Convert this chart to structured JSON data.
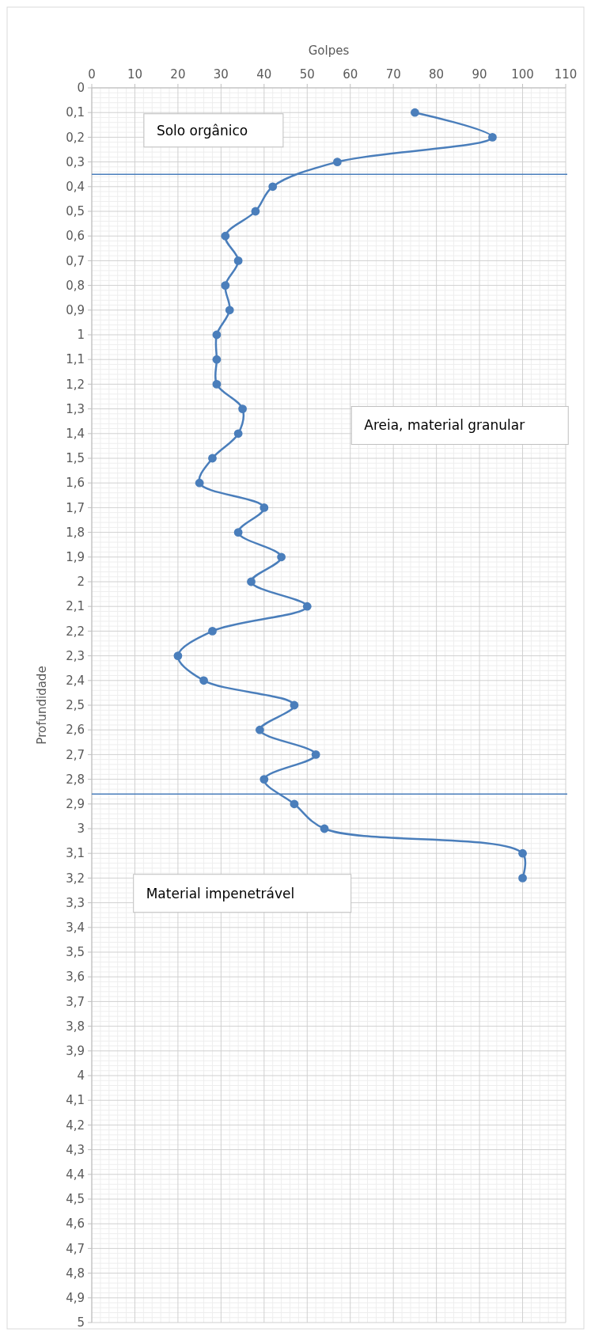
{
  "chart_data": {
    "type": "line",
    "xlabel": "Golpes",
    "ylabel": "Profundidade",
    "xlim": [
      0,
      110
    ],
    "xticks": [
      0,
      10,
      20,
      30,
      40,
      50,
      60,
      70,
      80,
      90,
      100,
      110
    ],
    "ylim": [
      5,
      0
    ],
    "yticks": [
      0,
      {
        "value": 0.1,
        "label": "0,1"
      },
      {
        "value": 0.2,
        "label": "0,2"
      },
      {
        "value": 0.3,
        "label": "0,3"
      },
      {
        "value": 0.4,
        "label": "0,4"
      },
      {
        "value": 0.5,
        "label": "0,5"
      },
      {
        "value": 0.6,
        "label": "0,6"
      },
      {
        "value": 0.7,
        "label": "0,7"
      },
      {
        "value": 0.8,
        "label": "0,8"
      },
      {
        "value": 0.9,
        "label": "0,9"
      },
      1,
      {
        "value": 1.1,
        "label": "1,1"
      },
      {
        "value": 1.2,
        "label": "1,2"
      },
      {
        "value": 1.3,
        "label": "1,3"
      },
      {
        "value": 1.4,
        "label": "1,4"
      },
      {
        "value": 1.5,
        "label": "1,5"
      },
      {
        "value": 1.6,
        "label": "1,6"
      },
      {
        "value": 1.7,
        "label": "1,7"
      },
      {
        "value": 1.8,
        "label": "1,8"
      },
      {
        "value": 1.9,
        "label": "1,9"
      },
      2,
      {
        "value": 2.1,
        "label": "2,1"
      },
      {
        "value": 2.2,
        "label": "2,2"
      },
      {
        "value": 2.3,
        "label": "2,3"
      },
      {
        "value": 2.4,
        "label": "2,4"
      },
      {
        "value": 2.5,
        "label": "2,5"
      },
      {
        "value": 2.6,
        "label": "2,6"
      },
      {
        "value": 2.7,
        "label": "2,7"
      },
      {
        "value": 2.8,
        "label": "2,8"
      },
      {
        "value": 2.9,
        "label": "2,9"
      },
      3,
      {
        "value": 3.1,
        "label": "3,1"
      },
      {
        "value": 3.2,
        "label": "3,2"
      },
      {
        "value": 3.3,
        "label": "3,3"
      },
      {
        "value": 3.4,
        "label": "3,4"
      },
      {
        "value": 3.5,
        "label": "3,5"
      },
      {
        "value": 3.6,
        "label": "3,6"
      },
      {
        "value": 3.7,
        "label": "3,7"
      },
      {
        "value": 3.8,
        "label": "3,8"
      },
      {
        "value": 3.9,
        "label": "3,9"
      },
      4,
      {
        "value": 4.1,
        "label": "4,1"
      },
      {
        "value": 4.2,
        "label": "4,2"
      },
      {
        "value": 4.3,
        "label": "4,3"
      },
      {
        "value": 4.4,
        "label": "4,4"
      },
      {
        "value": 4.5,
        "label": "4,5"
      },
      {
        "value": 4.6,
        "label": "4,6"
      },
      {
        "value": 4.7,
        "label": "4,7"
      },
      {
        "value": 4.8,
        "label": "4,8"
      },
      {
        "value": 4.9,
        "label": "4,9"
      },
      5
    ],
    "grid": true,
    "marker": "circle",
    "line_style": "solid",
    "series": [
      {
        "color": "#4a7ebb",
        "x": [
          75,
          93,
          57,
          42,
          38,
          31,
          34,
          31,
          32,
          29,
          29,
          29,
          35,
          34,
          28,
          25,
          40,
          34,
          44,
          37,
          50,
          28,
          20,
          26,
          47,
          39,
          52,
          40,
          47,
          54,
          100,
          100
        ],
        "values": [
          0.1,
          0.2,
          0.3,
          0.4,
          0.5,
          0.6,
          0.7,
          0.8,
          0.9,
          1,
          1.1,
          1.2,
          1.3,
          1.4,
          1.5,
          1.6,
          1.7,
          1.8,
          1.9,
          2,
          2.1,
          2.2,
          2.3,
          2.4,
          2.5,
          2.6,
          2.7,
          2.8,
          2.9,
          3,
          3.1,
          3.2
        ]
      }
    ],
    "ref_lines": [
      {
        "axis": "y",
        "value": 0.35,
        "color": "#4a7ebb"
      },
      {
        "axis": "y",
        "value": 2.86,
        "color": "#4a7ebb"
      }
    ],
    "annotations": [
      "Solo orgânico",
      "Areia, material granular",
      "Material impenetrável"
    ]
  }
}
